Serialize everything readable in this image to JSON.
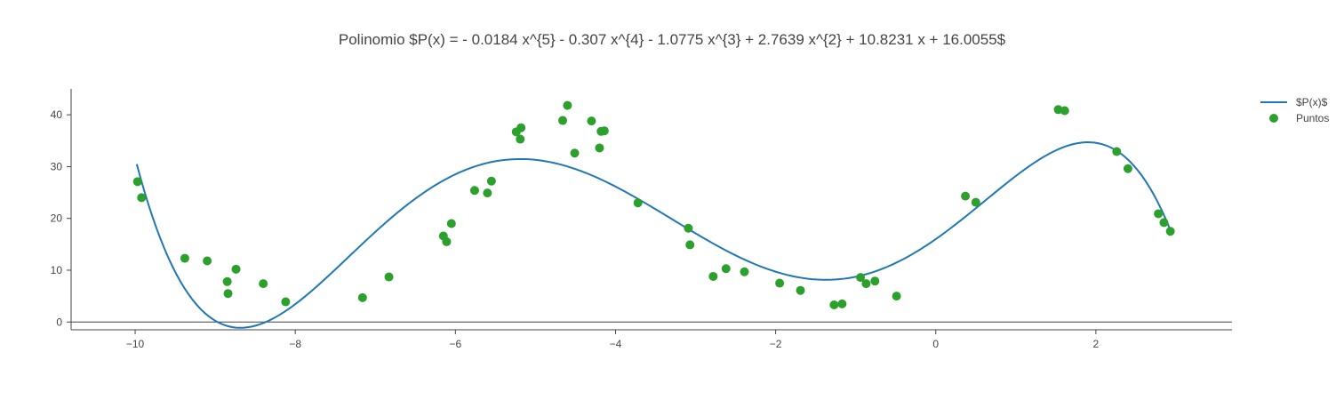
{
  "chart_data": {
    "type": "scatter",
    "title": "Polinomio $P(x) = - 0.0184 x^{5} - 0.307 x^{4} - 1.0775 x^{3} + 2.7639 x^{2} + 10.8231 x + 16.0055$",
    "xlabel": "",
    "ylabel": "",
    "xlim": [
      -10.8,
      3.7
    ],
    "ylim": [
      -1.5,
      45
    ],
    "x_ticks": [
      -10,
      -8,
      -6,
      -4,
      -2,
      0,
      2
    ],
    "x_tick_labels": [
      "−10",
      "−8",
      "−6",
      "−4",
      "−2",
      "0",
      "2"
    ],
    "y_ticks": [
      0,
      10,
      20,
      30,
      40
    ],
    "y_tick_labels": [
      "0",
      "10",
      "20",
      "30",
      "40"
    ],
    "grid": false,
    "legend": "top-right",
    "colors": {
      "line": "#1f77b4",
      "points": "#2ca02c",
      "text": "#444444"
    },
    "series": [
      {
        "name": "$P(x)$",
        "kind": "line",
        "coefficients": [
          -0.0184,
          -0.307,
          -1.0775,
          2.7639,
          10.8231,
          16.0055
        ],
        "x_range": [
          -9.98,
          2.92
        ]
      },
      {
        "name": "Puntos",
        "kind": "markers",
        "x": [
          -9.97,
          -9.92,
          -9.38,
          -9.1,
          -8.85,
          -8.84,
          -8.74,
          -8.4,
          -8.12,
          -7.16,
          -6.83,
          -6.15,
          -6.11,
          -6.05,
          -5.76,
          -5.6,
          -5.55,
          -5.24,
          -5.19,
          -5.18,
          -4.66,
          -4.6,
          -4.51,
          -4.3,
          -4.2,
          -4.18,
          -4.14,
          -3.72,
          -3.09,
          -3.07,
          -2.78,
          -2.62,
          -2.39,
          -1.95,
          -1.69,
          -1.27,
          -1.17,
          -0.94,
          -0.87,
          -0.76,
          -0.49,
          0.37,
          0.5,
          1.53,
          1.61,
          2.26,
          2.4,
          2.78,
          2.85,
          2.93
        ],
        "y": [
          27.1,
          24.0,
          12.3,
          11.8,
          7.8,
          5.5,
          10.2,
          7.4,
          3.9,
          4.7,
          8.7,
          16.6,
          15.5,
          19.0,
          25.4,
          24.9,
          27.2,
          36.7,
          35.3,
          37.5,
          38.9,
          41.8,
          32.6,
          38.8,
          33.6,
          36.8,
          36.9,
          23.0,
          18.1,
          14.9,
          8.8,
          10.3,
          9.7,
          7.5,
          6.1,
          3.3,
          3.5,
          8.6,
          7.4,
          7.9,
          5.0,
          24.3,
          23.1,
          41.0,
          40.8,
          32.9,
          29.6,
          20.9,
          19.2,
          17.5
        ]
      }
    ]
  }
}
